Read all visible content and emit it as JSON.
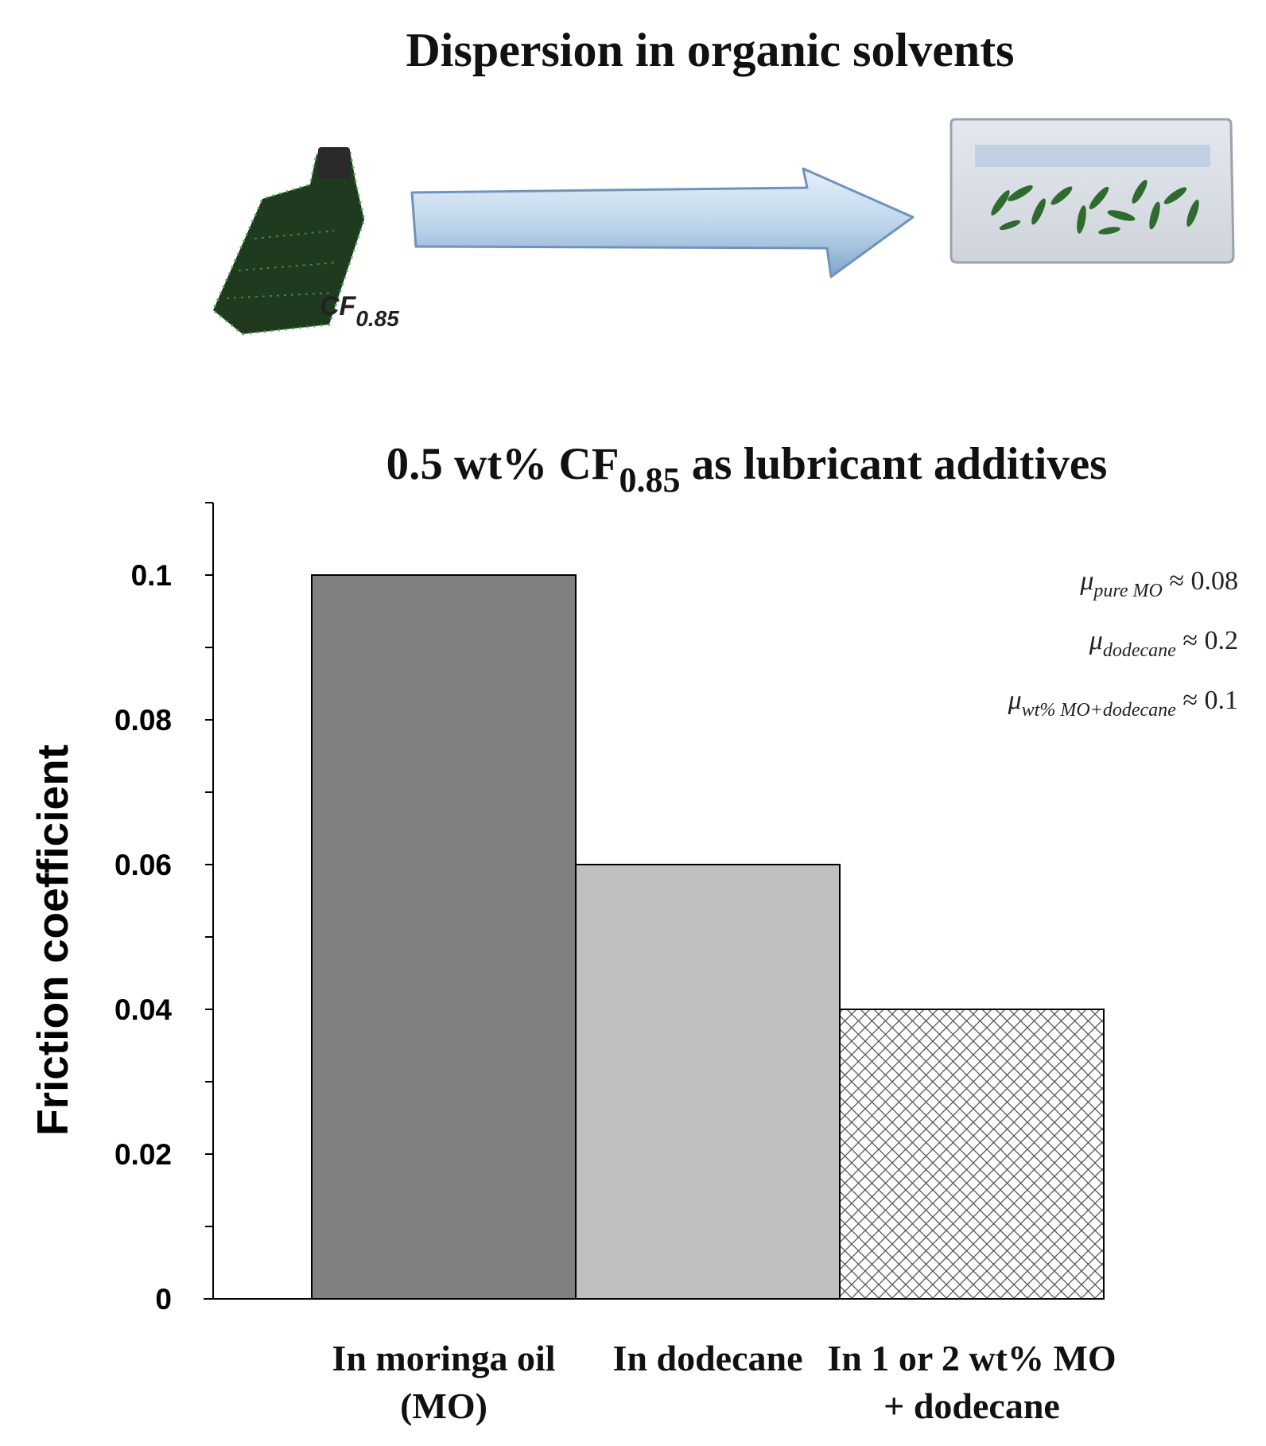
{
  "top_title": "Dispersion in organic solvents",
  "sample_label": {
    "main": "CF",
    "sub": "0.85"
  },
  "colors": {
    "bar_moringa": "#808080",
    "bar_dodecane": "#c0c0c0",
    "bar_mixture_fill": "#ffffff",
    "arrow_light": "#d6e6f6",
    "arrow_dark": "#7fa5cc",
    "fiber_green": "#2e6b2e"
  },
  "icons": [
    "fluorinated-fiber-bundle-icon",
    "dispersion-arrow-icon",
    "solvent-dish-icon"
  ],
  "chart_data": {
    "type": "bar",
    "title": {
      "pre": "0.5 wt% CF",
      "sub": "0.85",
      "post": " as lubricant additives"
    },
    "ylabel": "Friction coefficient",
    "xlabel": "",
    "ylim": [
      0,
      0.11
    ],
    "yticks": [
      {
        "value": 0,
        "label": "0"
      },
      {
        "value": 0.02,
        "label": "0.02"
      },
      {
        "value": 0.04,
        "label": "0.04"
      },
      {
        "value": 0.06,
        "label": "0.06"
      },
      {
        "value": 0.08,
        "label": "0.08"
      },
      {
        "value": 0.1,
        "label": "0.1"
      }
    ],
    "categories": [
      [
        "In moringa oil",
        "(MO)"
      ],
      [
        "In dodecane"
      ],
      [
        "In 1 or 2 wt% MO",
        "+ dodecane"
      ]
    ],
    "values": [
      0.1,
      0.06,
      0.04
    ],
    "bar_styles": [
      "dark-gray",
      "light-gray",
      "crosshatch"
    ],
    "grid": false,
    "annotations": [
      {
        "mu": "μ",
        "sub": "pure MO",
        "rest": " ≈ 0.08"
      },
      {
        "mu": "μ",
        "sub": "dodecane",
        "rest": " ≈ 0.2"
      },
      {
        "mu": "μ",
        "sub": "wt% MO+dodecane",
        "rest": " ≈ 0.1"
      }
    ]
  }
}
